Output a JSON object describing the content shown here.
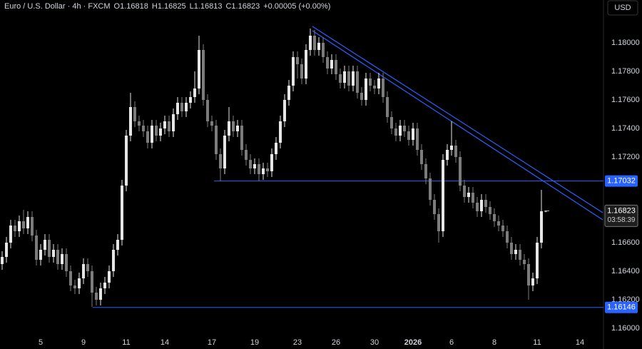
{
  "header": {
    "symbol": "Euro / U.S. Dollar · 4h · FXCM",
    "open": "O1.16818",
    "high": "H1.16825",
    "low": "L1.16813",
    "close": "C1.16823",
    "change": "+0.00005 (+0.00%)",
    "currency": "USD"
  },
  "chart_data": {
    "type": "candlestick",
    "up_color": "#e6e6e6",
    "down_color": "#7c7c7c",
    "level_color": "#2962ff",
    "grid": false,
    "categories": [
      null,
      null,
      null,
      null,
      null,
      null,
      null,
      null,
      null,
      "5",
      null,
      null,
      null,
      null,
      null,
      null,
      null,
      null,
      null,
      "9",
      null,
      null,
      null,
      null,
      null,
      null,
      null,
      null,
      null,
      "11",
      null,
      null,
      null,
      null,
      null,
      null,
      null,
      null,
      "14",
      null,
      null,
      null,
      null,
      null,
      null,
      null,
      null,
      null,
      null,
      "17",
      null,
      null,
      null,
      null,
      null,
      null,
      null,
      null,
      null,
      "19",
      null,
      null,
      null,
      null,
      null,
      null,
      null,
      null,
      null,
      "23",
      null,
      null,
      null,
      null,
      null,
      null,
      null,
      null,
      "26",
      null,
      null,
      null,
      null,
      null,
      null,
      null,
      null,
      "30",
      null,
      null,
      null,
      null,
      null,
      null,
      null,
      null,
      "2026",
      null,
      null,
      null,
      null,
      null,
      null,
      null,
      null,
      "6",
      null,
      null,
      null,
      null,
      null,
      null,
      null,
      null,
      null,
      "8",
      null,
      null,
      null,
      null,
      null,
      null,
      null,
      null,
      null,
      "11",
      null,
      null,
      null,
      null,
      null,
      null,
      null,
      null,
      null,
      "14",
      null,
      null,
      null,
      null,
      null
    ],
    "open": [
      1.1645,
      1.165,
      1.166,
      1.1672,
      1.1668,
      1.1675,
      1.167,
      1.1678,
      1.1665,
      1.1648,
      1.1655,
      1.1662,
      1.165,
      1.1655,
      1.1645,
      1.1652,
      1.164,
      1.163,
      1.1628,
      1.1635,
      1.1645,
      1.164,
      1.1625,
      1.162,
      1.1628,
      1.1632,
      1.164,
      1.1655,
      1.1662,
      1.17,
      1.1735,
      1.1755,
      1.1745,
      1.1742,
      1.1738,
      1.173,
      1.1742,
      1.1735,
      1.174,
      1.1745,
      1.1738,
      1.175,
      1.1758,
      1.1752,
      1.1758,
      1.1762,
      1.1768,
      1.1795,
      1.176,
      1.1745,
      1.1742,
      1.1722,
      1.1712,
      1.1735,
      1.1745,
      1.1738,
      1.1742,
      1.1725,
      1.1718,
      1.1712,
      1.1715,
      1.1708,
      1.1712,
      1.171,
      1.1722,
      1.173,
      1.1745,
      1.176,
      1.177,
      1.179,
      1.1785,
      1.1775,
      1.1795,
      1.1805,
      1.1795,
      1.18,
      1.179,
      1.1782,
      1.1788,
      1.1778,
      1.1772,
      1.178,
      1.177,
      1.178,
      1.1765,
      1.176,
      1.1775,
      1.177,
      1.1768,
      1.1775,
      1.1762,
      1.1748,
      1.174,
      1.1735,
      1.1742,
      1.1738,
      1.1732,
      1.174,
      1.1725,
      1.1715,
      1.1705,
      1.169,
      1.168,
      1.1668,
      1.1718,
      1.1725,
      1.1728,
      1.172,
      1.17,
      1.1692,
      1.1695,
      1.1688,
      1.1682,
      1.169,
      1.1685,
      1.168,
      1.1675,
      1.1672,
      1.1668,
      1.166,
      1.1652,
      1.1655,
      1.1648,
      1.1645,
      1.163,
      1.1635,
      1.166,
      1.16818,
      null,
      null,
      null,
      null,
      null,
      null,
      null,
      null,
      null,
      null,
      null,
      null,
      null
    ],
    "high": [
      1.1654,
      1.1664,
      1.1676,
      1.1676,
      1.1679,
      1.1683,
      1.1682,
      1.1682,
      1.1669,
      1.1659,
      1.1666,
      1.1666,
      1.1659,
      1.1659,
      1.1656,
      1.1656,
      1.1644,
      1.1634,
      1.1639,
      1.1649,
      1.1649,
      1.1644,
      1.1629,
      1.1632,
      1.1636,
      1.1644,
      1.1659,
      1.1666,
      1.1704,
      1.1739,
      1.1765,
      1.1759,
      1.1749,
      1.1746,
      1.1742,
      1.1746,
      1.1746,
      1.1744,
      1.1749,
      1.1749,
      1.1754,
      1.1762,
      1.1762,
      1.1762,
      1.1766,
      1.178,
      1.1805,
      1.1799,
      1.1764,
      1.1749,
      1.1746,
      1.1726,
      1.1739,
      1.1755,
      1.1749,
      1.1746,
      1.1746,
      1.1729,
      1.1722,
      1.1719,
      1.1719,
      1.1716,
      1.1716,
      1.1726,
      1.1734,
      1.1749,
      1.1764,
      1.1774,
      1.1794,
      1.1794,
      1.1789,
      1.1799,
      1.181,
      1.1809,
      1.1804,
      1.1804,
      1.1794,
      1.1792,
      1.1792,
      1.1782,
      1.1784,
      1.1784,
      1.1784,
      1.1784,
      1.1769,
      1.1779,
      1.1779,
      1.1774,
      1.1779,
      1.1779,
      1.1766,
      1.1752,
      1.1744,
      1.1746,
      1.1746,
      1.1742,
      1.1744,
      1.1744,
      1.1729,
      1.1719,
      1.1709,
      1.1694,
      1.1684,
      1.1722,
      1.1729,
      1.1745,
      1.1732,
      1.1724,
      1.1704,
      1.1699,
      1.1699,
      1.1692,
      1.1694,
      1.1694,
      1.1689,
      1.1684,
      1.1679,
      1.1676,
      1.1672,
      1.1664,
      1.1659,
      1.1659,
      1.1652,
      1.1649,
      1.1639,
      1.1664,
      1.1697,
      1.16825,
      null,
      null,
      null,
      null,
      null,
      null,
      null,
      null,
      null,
      null,
      null,
      null,
      null
    ],
    "low": [
      1.1641,
      1.1646,
      1.1656,
      1.1664,
      1.1664,
      1.1666,
      1.1666,
      1.1661,
      1.1644,
      1.1644,
      1.1651,
      1.1646,
      1.1646,
      1.1641,
      1.1641,
      1.1636,
      1.1626,
      1.1624,
      1.1624,
      1.1631,
      1.1636,
      1.1615,
      1.1616,
      1.1616,
      1.1624,
      1.1628,
      1.1636,
      1.1651,
      1.1658,
      1.1696,
      1.1731,
      1.1741,
      1.1738,
      1.1734,
      1.1726,
      1.1726,
      1.1731,
      1.1731,
      1.1736,
      1.1734,
      1.1734,
      1.1746,
      1.1748,
      1.1748,
      1.1754,
      1.1758,
      1.1764,
      1.1756,
      1.1741,
      1.1738,
      1.1718,
      1.1703,
      1.1708,
      1.1731,
      1.1734,
      1.1734,
      1.1721,
      1.1714,
      1.1708,
      1.1708,
      1.1703,
      1.1704,
      1.1706,
      1.1706,
      1.1718,
      1.1726,
      1.1741,
      1.1756,
      1.1766,
      1.1775,
      1.1771,
      1.1771,
      1.1791,
      1.1791,
      1.1791,
      1.1786,
      1.1778,
      1.1778,
      1.1774,
      1.1768,
      1.1768,
      1.1766,
      1.1766,
      1.1761,
      1.1756,
      1.1756,
      1.1766,
      1.1764,
      1.1764,
      1.1758,
      1.1744,
      1.1736,
      1.1731,
      1.1731,
      1.1734,
      1.1728,
      1.1728,
      1.1721,
      1.1711,
      1.1701,
      1.1686,
      1.1676,
      1.166,
      1.1664,
      1.1714,
      1.1721,
      1.1716,
      1.1696,
      1.1688,
      1.1688,
      1.1684,
      1.1678,
      1.1678,
      1.1681,
      1.1676,
      1.1671,
      1.1668,
      1.1664,
      1.1656,
      1.1648,
      1.1648,
      1.1644,
      1.1641,
      1.162,
      1.1626,
      1.1631,
      1.1656,
      1.16813,
      null,
      null,
      null,
      null,
      null,
      null,
      null,
      null,
      null,
      null,
      null,
      null,
      null
    ],
    "close": [
      1.165,
      1.166,
      1.1672,
      1.1668,
      1.1675,
      1.167,
      1.1678,
      1.1665,
      1.1648,
      1.1655,
      1.1662,
      1.165,
      1.1655,
      1.1645,
      1.1652,
      1.164,
      1.163,
      1.1628,
      1.1635,
      1.1645,
      1.164,
      1.1625,
      1.162,
      1.1628,
      1.1632,
      1.164,
      1.1655,
      1.1662,
      1.17,
      1.1735,
      1.1755,
      1.1745,
      1.1742,
      1.1738,
      1.173,
      1.1742,
      1.1735,
      1.174,
      1.1745,
      1.1738,
      1.175,
      1.1758,
      1.1752,
      1.1758,
      1.1762,
      1.1768,
      1.1795,
      1.176,
      1.1745,
      1.1742,
      1.1722,
      1.1712,
      1.1735,
      1.1745,
      1.1738,
      1.1742,
      1.1725,
      1.1718,
      1.1712,
      1.1715,
      1.1708,
      1.1712,
      1.171,
      1.1722,
      1.173,
      1.1745,
      1.176,
      1.177,
      1.179,
      1.1785,
      1.1775,
      1.1795,
      1.1805,
      1.1795,
      1.18,
      1.179,
      1.1782,
      1.1788,
      1.1778,
      1.1772,
      1.178,
      1.177,
      1.178,
      1.1765,
      1.176,
      1.1775,
      1.177,
      1.1768,
      1.1775,
      1.1762,
      1.1748,
      1.174,
      1.1735,
      1.1742,
      1.1738,
      1.1732,
      1.174,
      1.1725,
      1.1715,
      1.1705,
      1.169,
      1.168,
      1.1668,
      1.1718,
      1.1725,
      1.1728,
      1.172,
      1.17,
      1.1692,
      1.1695,
      1.1688,
      1.1682,
      1.169,
      1.1685,
      1.168,
      1.1675,
      1.1672,
      1.1668,
      1.166,
      1.1652,
      1.1655,
      1.1648,
      1.1645,
      1.163,
      1.1635,
      1.166,
      1.1682,
      1.16823,
      null,
      null,
      null,
      null,
      null,
      null,
      null,
      null,
      null,
      null,
      null,
      null,
      null
    ],
    "ylim": [
      1.1595,
      1.183
    ],
    "yticks": [
      {
        "value": 1.18,
        "label": "1.18000"
      },
      {
        "value": 1.178,
        "label": "1.17800"
      },
      {
        "value": 1.176,
        "label": "1.17600"
      },
      {
        "value": 1.174,
        "label": "1.17400"
      },
      {
        "value": 1.172,
        "label": "1.17200"
      },
      {
        "value": 1.166,
        "label": "1.16600"
      },
      {
        "value": 1.164,
        "label": "1.16400"
      },
      {
        "value": 1.162,
        "label": "1.16200"
      },
      {
        "value": 1.16,
        "label": "1.16000"
      }
    ],
    "levels": [
      1.17032,
      1.16146
    ],
    "countdown": "03:58:39"
  }
}
